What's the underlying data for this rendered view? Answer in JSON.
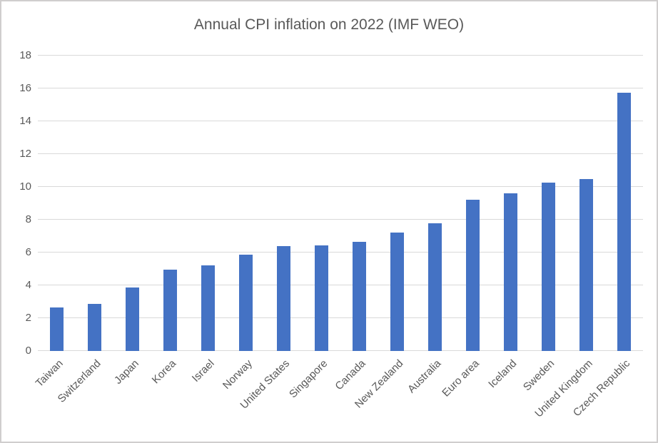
{
  "chart": {
    "title": "Annual CPI inflation on 2022 (IMF WEO)"
  },
  "colors": {
    "bar": "#4472C4",
    "gridline": "#D9D9D9",
    "text": "#595959",
    "frame_border": "#D0CECE",
    "background": "#FFFFFF"
  },
  "chart_data": {
    "type": "bar",
    "title": "Annual CPI inflation on 2022 (IMF WEO)",
    "categories": [
      "Taiwan",
      "Switzerland",
      "Japan",
      "Korea",
      "Israel",
      "Norway",
      "United States",
      "Singapore",
      "Canada",
      "New Zealand",
      "Australia",
      "Euro area",
      "Iceland",
      "Sweden",
      "United Kingdom",
      "Czech Republic"
    ],
    "values": [
      2.65,
      2.85,
      3.85,
      4.95,
      5.2,
      5.85,
      6.4,
      6.45,
      6.65,
      7.2,
      7.8,
      9.2,
      9.6,
      10.25,
      10.5,
      15.75
    ],
    "xlabel": "",
    "ylabel": "",
    "ylim": [
      0,
      18
    ],
    "yticks": [
      0,
      2,
      4,
      6,
      8,
      10,
      12,
      14,
      16,
      18
    ],
    "grid": true,
    "legend": false,
    "bar_color": "#4472C4",
    "x_tick_rotation_deg": 45
  }
}
